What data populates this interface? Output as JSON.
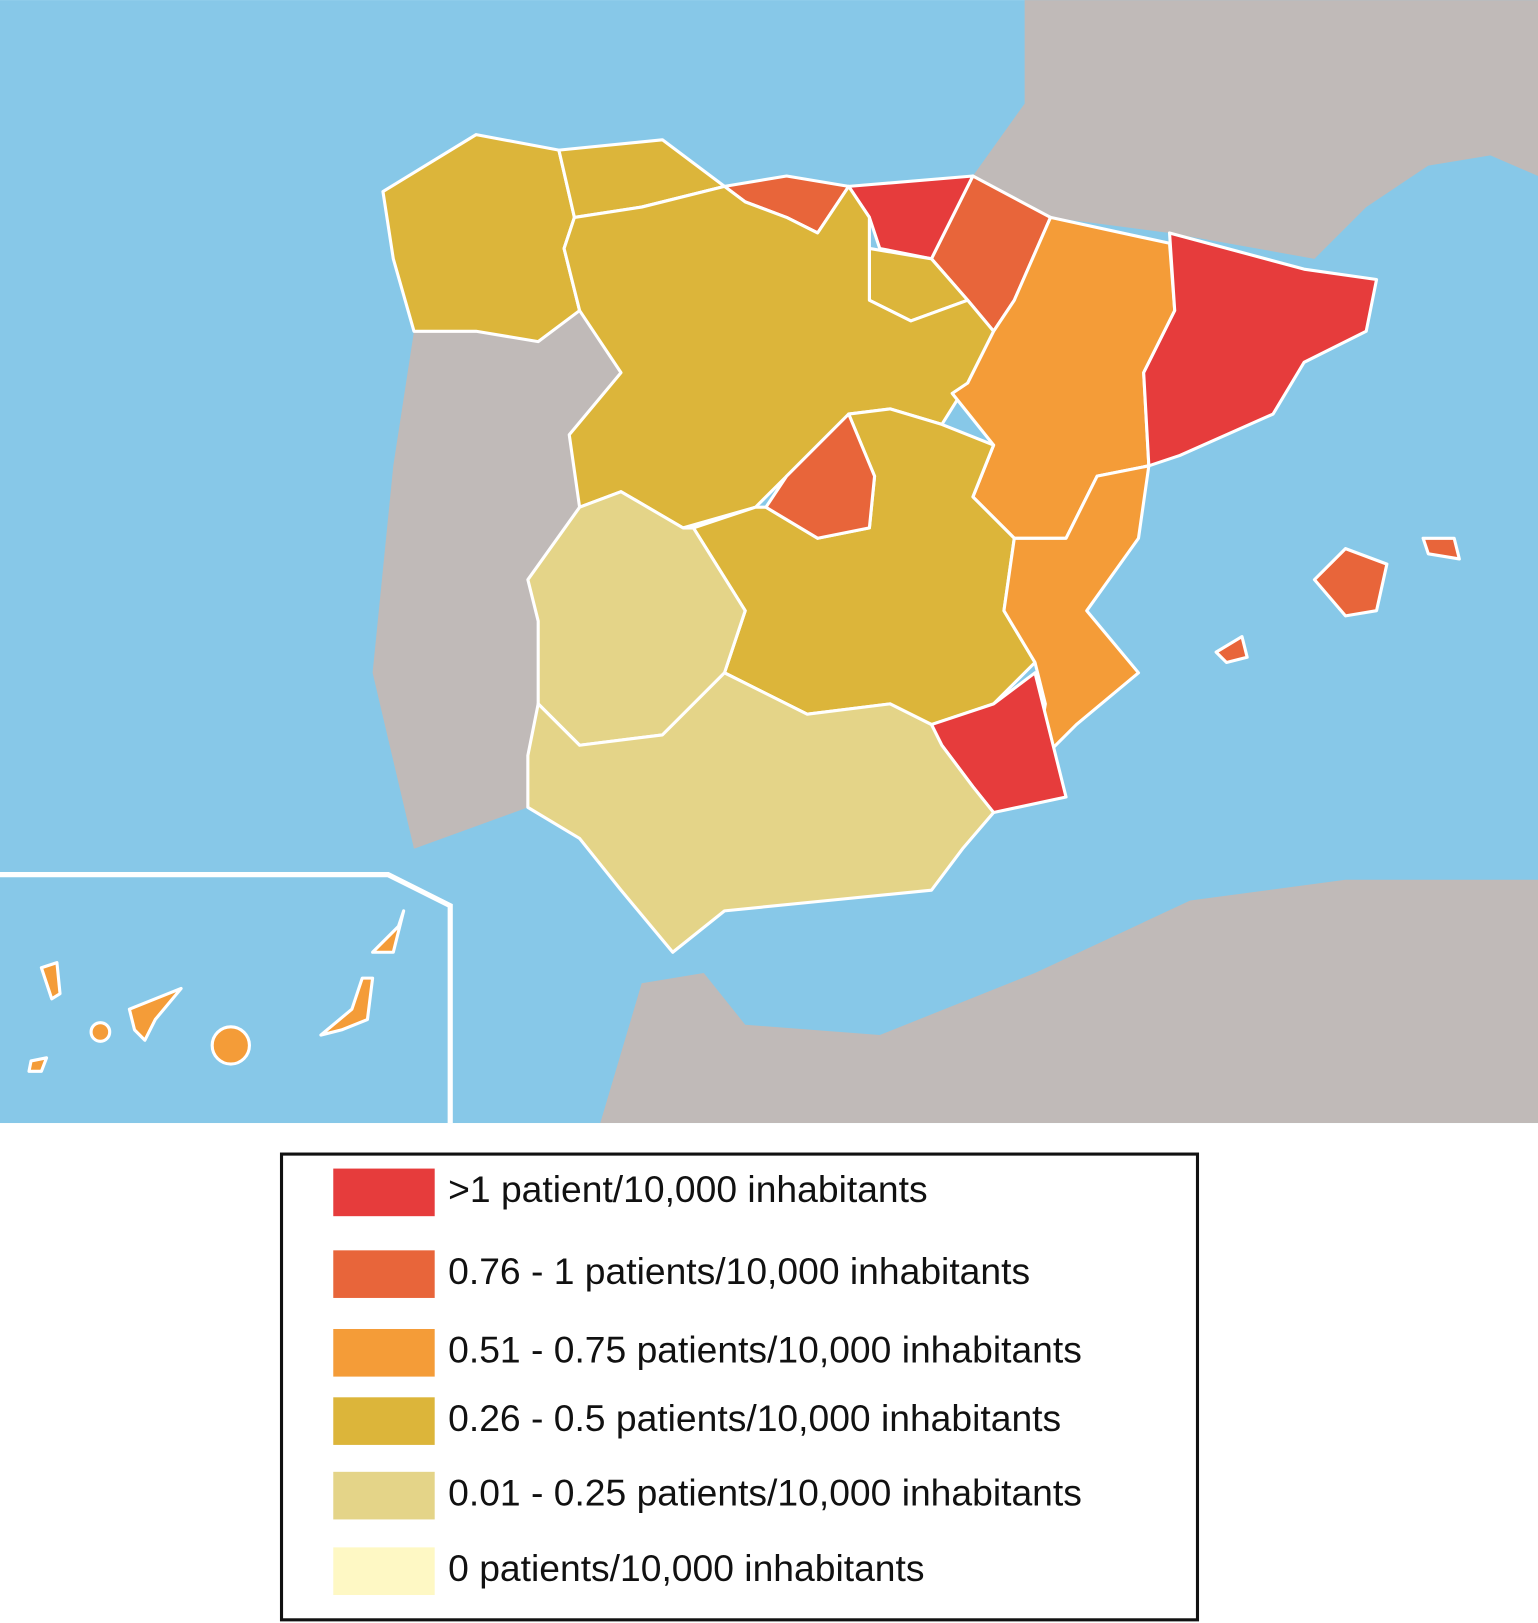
{
  "legend": {
    "items": [
      {
        "label": ">1 patient/10,000 inhabitants",
        "color": "#e63c3c"
      },
      {
        "label": "0.76 - 1 patients/10,000 inhabitants",
        "color": "#e8653a"
      },
      {
        "label": "0.51 - 0.75 patients/10,000 inhabitants",
        "color": "#f49c38"
      },
      {
        "label": "0.26 - 0.5 patients/10,000 inhabitants",
        "color": "#dcb53a"
      },
      {
        "label": "0.01 - 0.25 patients/10,000 inhabitants",
        "color": "#e4d488"
      },
      {
        "label": "0 patients/10,000 inhabitants",
        "color": "#fef8c4"
      }
    ]
  }
}
